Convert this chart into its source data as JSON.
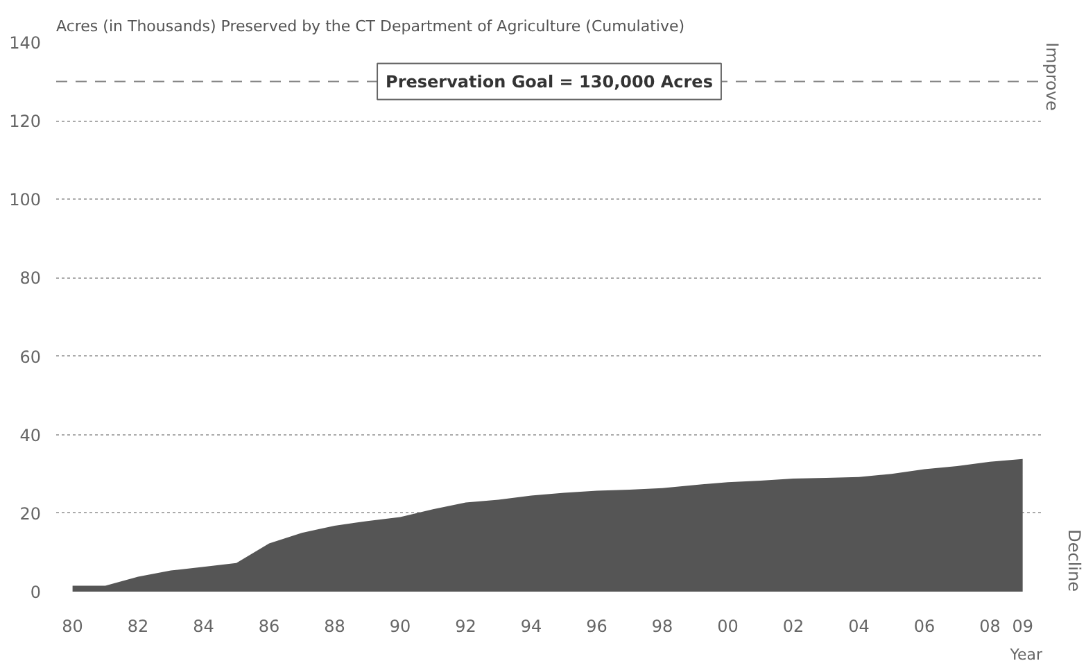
{
  "chart_data": {
    "type": "area",
    "title": "Acres (in Thousands) Preserved by the CT Department of Agriculture (Cumulative)",
    "xlabel": "Year",
    "x": [
      1980,
      1981,
      1982,
      1983,
      1984,
      1985,
      1986,
      1987,
      1988,
      1989,
      1990,
      1991,
      1992,
      1993,
      1994,
      1995,
      1996,
      1997,
      1998,
      1999,
      2000,
      2001,
      2002,
      2003,
      2004,
      2005,
      2006,
      2007,
      2008,
      2009
    ],
    "series": [
      {
        "color": "#555555",
        "values": [
          1.5,
          1.5,
          3.8,
          5.4,
          6.3,
          7.3,
          12.3,
          15,
          16.8,
          18,
          19,
          21,
          22.7,
          23.4,
          24.5,
          25.2,
          25.7,
          26,
          26.4,
          27.2,
          27.9,
          28.3,
          28.8,
          29,
          29.2,
          30,
          31.2,
          32,
          33.1,
          33.8
        ]
      }
    ],
    "xlim": [
      1979.5,
      2009.6
    ],
    "xticks": [
      {
        "value": 1980,
        "label": "80"
      },
      {
        "value": 1982,
        "label": "82"
      },
      {
        "value": 1984,
        "label": "84"
      },
      {
        "value": 1986,
        "label": "86"
      },
      {
        "value": 1988,
        "label": "88"
      },
      {
        "value": 1990,
        "label": "90"
      },
      {
        "value": 1992,
        "label": "92"
      },
      {
        "value": 1994,
        "label": "94"
      },
      {
        "value": 1996,
        "label": "96"
      },
      {
        "value": 1998,
        "label": "98"
      },
      {
        "value": 2000,
        "label": "00"
      },
      {
        "value": 2002,
        "label": "02"
      },
      {
        "value": 2004,
        "label": "04"
      },
      {
        "value": 2006,
        "label": "06"
      },
      {
        "value": 2008,
        "label": "08"
      },
      {
        "value": 2009,
        "label": "09"
      }
    ],
    "ylim": [
      0,
      140
    ],
    "yticks": [
      0,
      20,
      40,
      60,
      80,
      100,
      120,
      140
    ],
    "grid": "y",
    "ref_lines": [
      {
        "axis": "y",
        "value": 130,
        "label": "Preservation Goal = 130,000 Acres",
        "color": "#888888",
        "line_style": "dashed"
      }
    ],
    "annotations": [
      "Improve",
      "Decline"
    ]
  }
}
